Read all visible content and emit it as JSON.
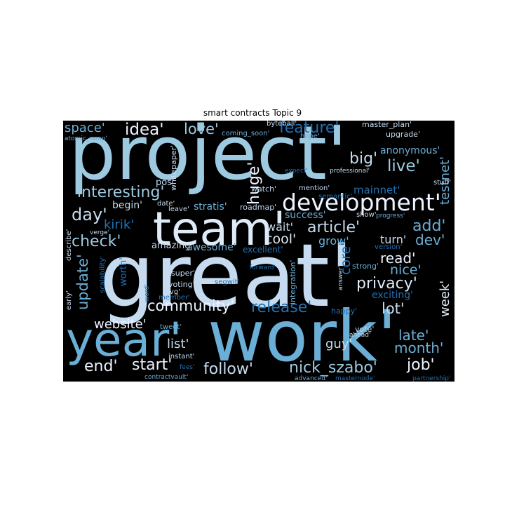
{
  "title": "smart contracts Topic 9",
  "colors": {
    "background": "#000000",
    "palette": "Blues"
  },
  "words": {
    "project": "project'",
    "great": "great'",
    "work": "work'",
    "year": "year'",
    "team": "team'",
    "development": "development'",
    "idea": "idea'",
    "love": "love'",
    "feature": "feature'",
    "space": "space'",
    "interesting": "interesting'",
    "huge": "huge'",
    "big": "big'",
    "live": "live'",
    "anonymous": "anonymous'",
    "testnet": "testnet'",
    "mainnet": "mainnet'",
    "day": "day'",
    "begin": "begin'",
    "kirik": "kirik'",
    "stratis": "stratis'",
    "roadmap": "roadmap'",
    "article": "article'",
    "add": "add'",
    "check": "check'",
    "cool": "cool'",
    "wait": "wait'",
    "success": "success'",
    "grow": "grow'",
    "turn": "turn'",
    "dev": "dev'",
    "read": "read'",
    "nice": "nice'",
    "core": "core'",
    "update": "update'",
    "amazing": "amazing'",
    "awesome": "awesome'",
    "excellent": "excellent'",
    "privacy": "privacy'",
    "week": "week'",
    "community": "community'",
    "release": "release'",
    "lot": "lot'",
    "website": "website'",
    "late": "late'",
    "month": "month'",
    "list": "list'",
    "guy": "guy'",
    "end": "end'",
    "start": "start'",
    "follow": "follow'",
    "nick_szabo": "nick_szabo'",
    "job": "job'",
    "pos": "pos'",
    "worth": "worth'",
    "whitepaper": "whitepaper'",
    "watch": "watch'",
    "mention": "mention'",
    "semantic": "semantic'",
    "show": "show'",
    "progress": "progress'",
    "version": "version'",
    "strong": "strong'",
    "exciting": "exciting'",
    "happy": "happy'",
    "vote": "vote'",
    "ahead": "ahead'",
    "byteball": "byteball'",
    "coming_soon": "coming_soon'",
    "master_plan": "master_plan'",
    "hope": "hope'",
    "upgrade": "upgrade'",
    "atomic_swap": "atomic_swap'",
    "professional": "professional'",
    "expect": "expect'",
    "stuff": "stuff'",
    "date": "date'",
    "leave": "leave'",
    "verge": "verge'",
    "describe": "describe'",
    "scalability": "scalability'",
    "super": "super'",
    "voting": "voting'",
    "segwit": "segwit'",
    "forward": "forward'",
    "integration": "integration'",
    "answer": "answer'",
    "xvg": "xvg'",
    "word": "word'",
    "early": "early'",
    "member": "member'",
    "tweet": "tweet'",
    "instant": "instant'",
    "fees": "fees'",
    "contractvault": "contractvault'",
    "advanced": "advanced'",
    "masternode": "masternode'",
    "partnership": "partnership'"
  }
}
